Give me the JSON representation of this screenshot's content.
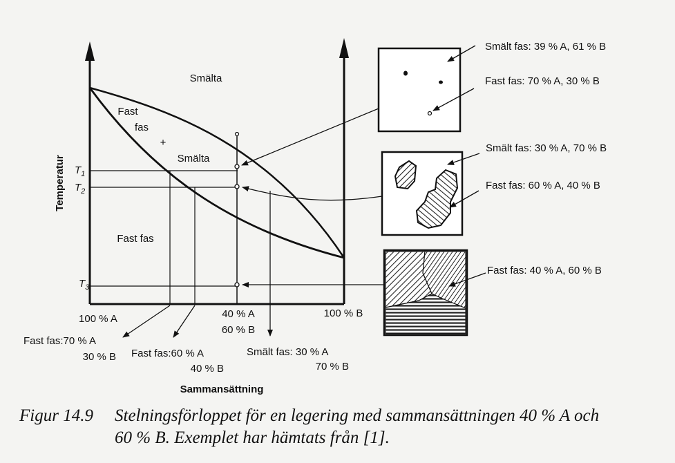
{
  "diagram": {
    "axis_y_label": "Temperatur",
    "axis_x_label": "Sammansättning",
    "t1": "T1",
    "t2": "T2",
    "t3": "T3",
    "t_base": "T",
    "t1_sub": "1",
    "t2_sub": "2",
    "t3_sub": "3",
    "region_melt": "Smälta",
    "region_solid_liquid_l1": "Fast",
    "region_solid_liquid_l2": "fas",
    "region_solid_liquid_plus": "+",
    "region_solid_liquid_l3": "Smälta",
    "region_solid": "Fast fas",
    "x_left": "100 % A",
    "x_right": "100 % B",
    "x_mid_l1": "40 % A",
    "x_mid_l2": "60 % B",
    "bottom_1_l1": "Fast fas:70 % A",
    "bottom_1_l2": "30 % B",
    "bottom_2_l1": "Fast fas:60 % A",
    "bottom_2_l2": "40 % B",
    "bottom_3_l1": "Smält fas: 30 % A",
    "bottom_3_l2": "70 % B"
  },
  "micrographs": [
    {
      "label_1": "Smält fas: 39 % A, 61 % B",
      "label_2": "Fast fas: 70 % A, 30 % B"
    },
    {
      "label_1": "Smält fas: 30 % A, 70 % B",
      "label_2": "Fast fas: 60 % A, 40 % B"
    },
    {
      "label_1": "Fast fas: 40 % A, 60 % B"
    }
  ],
  "caption": {
    "number": "Figur 14.9",
    "line1": "Stelningsförloppet för en legering med sammansättningen 40 % A och",
    "line2": "60 % B. Exemplet har hämtats från [1]."
  }
}
